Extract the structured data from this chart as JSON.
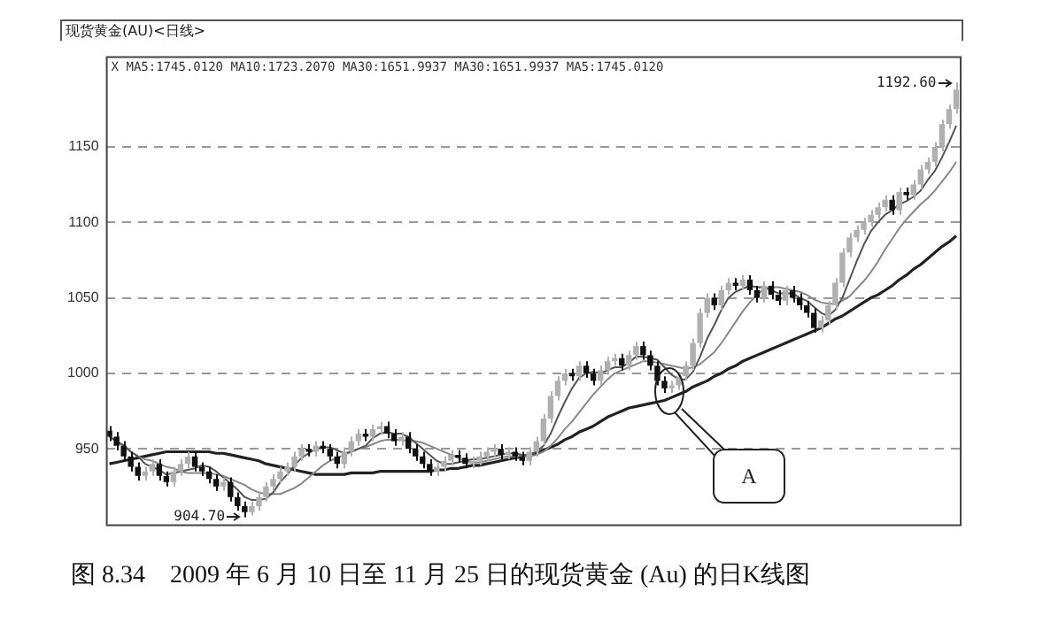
{
  "chart_data": {
    "type": "candlestick",
    "title": "现货黄金(AU)<日线>",
    "categories": [
      null,
      null,
      null,
      null,
      null,
      null,
      null,
      null,
      null,
      null,
      null,
      null,
      null,
      null,
      null,
      null,
      null,
      null,
      null,
      null,
      null,
      null,
      null,
      null,
      null,
      null,
      null,
      null,
      null,
      null,
      null,
      null,
      null,
      null,
      null,
      null,
      null,
      null,
      null,
      null,
      null,
      null,
      null,
      null,
      null,
      null,
      null,
      null,
      null,
      null,
      null,
      null,
      null,
      null,
      null,
      null,
      null,
      null,
      null,
      null,
      null,
      null,
      null,
      null,
      null,
      null,
      null,
      null,
      null,
      null,
      null,
      null,
      null,
      null,
      null,
      null,
      null,
      null,
      null,
      null,
      null,
      null,
      null,
      null,
      null,
      null,
      null,
      null,
      null,
      null,
      null,
      null,
      null,
      null,
      null,
      null,
      null,
      null,
      null,
      null,
      null,
      null,
      null,
      null,
      null,
      null,
      null,
      null,
      null,
      null,
      null,
      null,
      null,
      null,
      null,
      null,
      null,
      null,
      null,
      null
    ],
    "series": [
      {
        "type": "line",
        "color": "#555555",
        "values": [
          958,
          955,
          952,
          948,
          945,
          940,
          938,
          936,
          933,
          934,
          935,
          936,
          937,
          939,
          938,
          935,
          931,
          927,
          923,
          918,
          916,
          916,
          917,
          921,
          928,
          933,
          939,
          944,
          947,
          950,
          951,
          951,
          949,
          947,
          948,
          950,
          952,
          957,
          960,
          961,
          960,
          960,
          958,
          954,
          950,
          946,
          942,
          940,
          940,
          941,
          942,
          943,
          943,
          944,
          945,
          946,
          947,
          947,
          946,
          946,
          948,
          952,
          960,
          971,
          981,
          990,
          997,
          1000,
          1001,
          1000,
          1002,
          1004,
          1004,
          1007,
          1011,
          1011,
          1010,
          1009,
          1004,
          999,
          996,
          996,
          1001,
          1011,
          1023,
          1032,
          1042,
          1050,
          1054,
          1056,
          1058,
          1057,
          1057,
          1055,
          1053,
          1053,
          1053,
          1050,
          1048,
          1044,
          1040,
          1038,
          1042,
          1050,
          1062,
          1074,
          1085,
          1094,
          1100,
          1105,
          1108,
          1112,
          1114,
          1117,
          1121,
          1128,
          1134,
          1143,
          1153,
          1164
        ]
      },
      {
        "type": "line",
        "color": "#888888",
        "values": [
          958,
          955,
          952,
          948,
          945,
          943,
          942,
          940,
          938,
          937,
          935,
          934,
          934,
          934,
          934,
          933,
          932,
          930,
          928,
          926,
          923,
          921,
          920,
          920,
          920,
          922,
          924,
          927,
          931,
          935,
          939,
          942,
          944,
          946,
          948,
          950,
          951,
          953,
          955,
          956,
          956,
          956,
          955,
          955,
          954,
          952,
          950,
          948,
          946,
          944,
          942,
          941,
          941,
          942,
          943,
          944,
          945,
          945,
          945,
          945,
          946,
          948,
          952,
          957,
          963,
          968,
          974,
          980,
          986,
          991,
          996,
          1000,
          1002,
          1004,
          1006,
          1008,
          1008,
          1007,
          1006,
          1005,
          1004,
          1003,
          1004,
          1006,
          1010,
          1014,
          1020,
          1027,
          1034,
          1041,
          1047,
          1052,
          1056,
          1057,
          1057,
          1056,
          1055,
          1054,
          1052,
          1049,
          1047,
          1046,
          1046,
          1048,
          1051,
          1056,
          1061,
          1067,
          1074,
          1082,
          1089,
          1096,
          1102,
          1107,
          1112,
          1116,
          1121,
          1127,
          1133,
          1140
        ]
      },
      {
        "type": "line",
        "color": "#222222",
        "values": [
          940,
          941,
          942,
          943,
          944,
          945,
          946,
          947,
          948,
          948,
          948,
          948,
          948,
          948,
          948,
          947,
          947,
          946,
          945,
          944,
          943,
          942,
          940,
          939,
          938,
          937,
          936,
          935,
          934,
          933,
          933,
          933,
          933,
          933,
          934,
          934,
          934,
          934,
          935,
          935,
          935,
          935,
          935,
          935,
          935,
          935,
          936,
          936,
          937,
          937,
          938,
          939,
          939,
          940,
          941,
          942,
          943,
          944,
          945,
          946,
          947,
          949,
          951,
          953,
          956,
          958,
          961,
          963,
          965,
          968,
          971,
          973,
          975,
          977,
          978,
          979,
          980,
          981,
          982,
          984,
          986,
          988,
          991,
          993,
          995,
          998,
          1000,
          1003,
          1005,
          1008,
          1010,
          1012,
          1014,
          1016,
          1018,
          1020,
          1022,
          1024,
          1026,
          1028,
          1030,
          1033,
          1036,
          1038,
          1041,
          1044,
          1047,
          1050,
          1052,
          1055,
          1058,
          1062,
          1065,
          1069,
          1072,
          1076,
          1080,
          1084,
          1087,
          1091
        ]
      },
      {
        "colors": [
          "#111111",
          "#111111",
          "#111111",
          "#111111",
          "#111111",
          "#b0b0b0",
          "#b0b0b0",
          "#111111",
          "#111111",
          "#b0b0b0",
          "#b0b0b0",
          "#b0b0b0",
          "#111111",
          "#111111",
          "#111111",
          "#111111",
          "#b0b0b0",
          "#111111",
          "#111111",
          "#111111",
          "#b0b0b0",
          "#b0b0b0",
          "#b0b0b0",
          "#b0b0b0",
          "#b0b0b0",
          "#b0b0b0",
          "#b0b0b0",
          "#b0b0b0",
          "#111111",
          "#b0b0b0",
          "#111111",
          "#111111",
          "#111111",
          "#b0b0b0",
          "#b0b0b0",
          "#b0b0b0",
          "#111111",
          "#b0b0b0",
          "#b0b0b0",
          "#111111",
          "#111111",
          "#b0b0b0",
          "#111111",
          "#111111",
          "#111111",
          "#111111",
          "#b0b0b0",
          "#b0b0b0",
          "#b0b0b0",
          "#111111",
          "#111111",
          "#b0b0b0",
          "#b0b0b0",
          "#b0b0b0",
          "#b0b0b0",
          "#111111",
          "#b0b0b0",
          "#111111",
          "#111111",
          "#b0b0b0",
          "#b0b0b0",
          "#b0b0b0",
          "#b0b0b0",
          "#b0b0b0",
          "#b0b0b0",
          "#111111",
          "#b0b0b0",
          "#111111",
          "#111111",
          "#b0b0b0",
          "#b0b0b0",
          "#b0b0b0",
          "#111111",
          "#b0b0b0",
          "#b0b0b0",
          "#111111",
          "#111111",
          "#111111",
          "#111111",
          "#b0b0b0",
          "#b0b0b0",
          "#b0b0b0",
          "#b0b0b0",
          "#b0b0b0",
          "#b0b0b0",
          "#111111",
          "#b0b0b0",
          "#b0b0b0",
          "#111111",
          "#b0b0b0",
          "#111111",
          "#111111",
          "#b0b0b0",
          "#111111",
          "#111111",
          "#b0b0b0",
          "#111111",
          "#111111",
          "#111111",
          "#111111",
          "#b0b0b0",
          "#b0b0b0",
          "#b0b0b0",
          "#b0b0b0",
          "#b0b0b0",
          "#b0b0b0",
          "#b0b0b0",
          "#b0b0b0",
          "#b0b0b0",
          "#b0b0b0",
          "#111111",
          "#b0b0b0",
          "#111111",
          "#b0b0b0",
          "#b0b0b0",
          "#b0b0b0",
          "#b0b0b0",
          "#b0b0b0",
          "#b0b0b0",
          "#b0b0b0"
        ],
        "ohlc": [
          [
            962,
            965,
            955,
            958
          ],
          [
            958,
            961,
            949,
            952
          ],
          [
            952,
            955,
            942,
            945
          ],
          [
            945,
            948,
            935,
            938
          ],
          [
            938,
            941,
            929,
            932
          ],
          [
            932,
            938,
            929,
            935
          ],
          [
            935,
            943,
            932,
            940
          ],
          [
            940,
            943,
            929,
            932
          ],
          [
            932,
            935,
            925,
            928
          ],
          [
            928,
            938,
            925,
            935
          ],
          [
            935,
            943,
            932,
            940
          ],
          [
            940,
            948,
            937,
            945
          ],
          [
            945,
            948,
            935,
            938
          ],
          [
            938,
            941,
            932,
            935
          ],
          [
            935,
            938,
            927,
            930
          ],
          [
            930,
            933,
            922,
            925
          ],
          [
            925,
            931,
            922,
            928
          ],
          [
            928,
            931,
            915,
            918
          ],
          [
            918,
            921,
            909,
            912
          ],
          [
            912,
            915,
            904.7,
            908
          ],
          [
            908,
            915,
            906,
            912
          ],
          [
            912,
            921,
            909,
            918
          ],
          [
            918,
            928,
            915,
            925
          ],
          [
            925,
            933,
            922,
            930
          ],
          [
            930,
            938,
            927,
            935
          ],
          [
            935,
            941,
            932,
            938
          ],
          [
            938,
            948,
            935,
            945
          ],
          [
            945,
            953,
            942,
            950
          ],
          [
            950,
            953,
            945,
            948
          ],
          [
            948,
            955,
            945,
            952
          ],
          [
            952,
            955,
            947,
            950
          ],
          [
            950,
            953,
            942,
            945
          ],
          [
            945,
            948,
            937,
            940
          ],
          [
            940,
            951,
            937,
            948
          ],
          [
            948,
            958,
            945,
            955
          ],
          [
            955,
            963,
            952,
            960
          ],
          [
            960,
            963,
            955,
            958
          ],
          [
            958,
            966,
            955,
            963
          ],
          [
            963,
            968,
            960,
            965
          ],
          [
            965,
            968,
            957,
            960
          ],
          [
            960,
            963,
            952,
            955
          ],
          [
            955,
            961,
            952,
            958
          ],
          [
            958,
            961,
            947,
            950
          ],
          [
            950,
            953,
            942,
            945
          ],
          [
            945,
            948,
            937,
            940
          ],
          [
            940,
            943,
            932,
            935
          ],
          [
            935,
            941,
            932,
            938
          ],
          [
            938,
            945,
            935,
            942
          ],
          [
            942,
            949,
            939,
            946
          ],
          [
            946,
            949,
            941,
            944
          ],
          [
            944,
            947,
            937,
            940
          ],
          [
            940,
            945,
            937,
            942
          ],
          [
            942,
            948,
            939,
            945
          ],
          [
            945,
            951,
            942,
            948
          ],
          [
            948,
            953,
            945,
            950
          ],
          [
            950,
            953,
            943,
            946
          ],
          [
            946,
            951,
            943,
            948
          ],
          [
            948,
            951,
            942,
            945
          ],
          [
            945,
            948,
            939,
            942
          ],
          [
            942,
            951,
            939,
            948
          ],
          [
            948,
            958,
            945,
            955
          ],
          [
            955,
            973,
            952,
            970
          ],
          [
            970,
            988,
            967,
            985
          ],
          [
            985,
            998,
            982,
            995
          ],
          [
            995,
            1003,
            992,
            1000
          ],
          [
            1000,
            1003,
            995,
            998
          ],
          [
            998,
            1008,
            995,
            1005
          ],
          [
            1005,
            1008,
            997,
            1000
          ],
          [
            1000,
            1003,
            992,
            995
          ],
          [
            995,
            1005,
            992,
            1002
          ],
          [
            1002,
            1011,
            999,
            1008
          ],
          [
            1008,
            1013,
            1005,
            1010
          ],
          [
            1010,
            1013,
            1002,
            1005
          ],
          [
            1005,
            1015,
            1002,
            1012
          ],
          [
            1012,
            1021,
            1009,
            1018
          ],
          [
            1018,
            1021,
            1009,
            1012
          ],
          [
            1012,
            1015,
            1002,
            1005
          ],
          [
            1005,
            1008,
            992,
            995
          ],
          [
            995,
            998,
            987,
            990
          ],
          [
            990,
            995,
            987,
            992
          ],
          [
            992,
            1001,
            989,
            998
          ],
          [
            998,
            1008,
            995,
            1005
          ],
          [
            1005,
            1023,
            1002,
            1020
          ],
          [
            1020,
            1043,
            1017,
            1040
          ],
          [
            1040,
            1053,
            1037,
            1050
          ],
          [
            1050,
            1053,
            1042,
            1045
          ],
          [
            1045,
            1058,
            1042,
            1055
          ],
          [
            1055,
            1063,
            1052,
            1060
          ],
          [
            1060,
            1063,
            1055,
            1058
          ],
          [
            1058,
            1065,
            1055,
            1062
          ],
          [
            1062,
            1065,
            1052,
            1055
          ],
          [
            1055,
            1058,
            1047,
            1050
          ],
          [
            1050,
            1061,
            1047,
            1058
          ],
          [
            1058,
            1061,
            1049,
            1052
          ],
          [
            1052,
            1055,
            1045,
            1048
          ],
          [
            1048,
            1058,
            1045,
            1055
          ],
          [
            1055,
            1058,
            1047,
            1050
          ],
          [
            1050,
            1053,
            1042,
            1045
          ],
          [
            1045,
            1048,
            1037,
            1040
          ],
          [
            1040,
            1043,
            1027,
            1030
          ],
          [
            1030,
            1038,
            1027,
            1035
          ],
          [
            1035,
            1048,
            1032,
            1045
          ],
          [
            1045,
            1063,
            1042,
            1060
          ],
          [
            1060,
            1083,
            1057,
            1080
          ],
          [
            1080,
            1093,
            1077,
            1090
          ],
          [
            1090,
            1098,
            1087,
            1095
          ],
          [
            1095,
            1103,
            1092,
            1100
          ],
          [
            1100,
            1108,
            1097,
            1105
          ],
          [
            1105,
            1113,
            1102,
            1110
          ],
          [
            1110,
            1118,
            1107,
            1115
          ],
          [
            1115,
            1118,
            1105,
            1108
          ],
          [
            1108,
            1123,
            1105,
            1120
          ],
          [
            1120,
            1123,
            1115,
            1118
          ],
          [
            1118,
            1128,
            1115,
            1125
          ],
          [
            1125,
            1138,
            1122,
            1135
          ],
          [
            1135,
            1143,
            1132,
            1140
          ],
          [
            1140,
            1153,
            1137,
            1150
          ],
          [
            1150,
            1168,
            1147,
            1165
          ],
          [
            1165,
            1178,
            1162,
            1175
          ],
          [
            1175,
            1192.6,
            1172,
            1188
          ]
        ]
      }
    ],
    "ylim": [
      900,
      1210
    ],
    "yticks": [
      950,
      1000,
      1050,
      1100,
      1150
    ],
    "grid": "y",
    "legend": false,
    "tick_labels": "y",
    "marker": "none",
    "line_style": "solid",
    "annotations": [
      "X MA5:1745.0120 MA10:1723.2070 MA30:1651.9937 MA30:1651.9937 MA5:1745.0120",
      "1192.60",
      "904.70",
      "A",
      "图 8.34　2009 年 6 月 10 日至 11 月 25 日的现货黄金 (Au) 的日K线图"
    ]
  }
}
